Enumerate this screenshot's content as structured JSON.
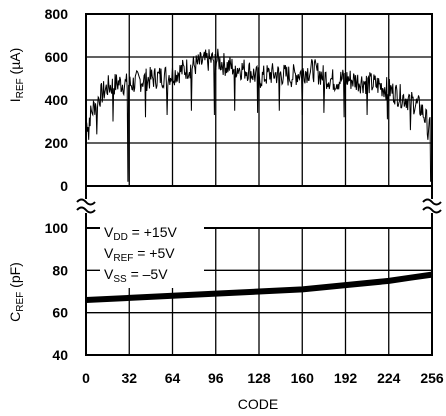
{
  "chart_data": {
    "type": "line",
    "xlabel": "CODE",
    "x_ticks": [
      "0",
      "32",
      "64",
      "96",
      "128",
      "160",
      "192",
      "224",
      "256"
    ],
    "xlim": [
      0,
      256
    ],
    "grid": true,
    "axis_break_between_panels": true,
    "panels": [
      {
        "name": "top",
        "ylabel_main": "I",
        "ylabel_sub": "REF",
        "ylabel_unit": " (µA)",
        "y_ticks": [
          "800",
          "600",
          "400",
          "200",
          "0"
        ],
        "ylim": [
          0,
          800
        ],
        "series": [
          {
            "style": "noisy-line",
            "x": [
              0,
              8,
              16,
              24,
              32,
              40,
              48,
              56,
              64,
              72,
              80,
              88,
              96,
              104,
              112,
              120,
              128,
              136,
              144,
              152,
              160,
              168,
              176,
              184,
              192,
              200,
              208,
              216,
              224,
              232,
              240,
              248,
              255
            ],
            "y": [
              280,
              400,
              460,
              480,
              470,
              490,
              500,
              510,
              520,
              540,
              560,
              580,
              590,
              560,
              550,
              540,
              500,
              520,
              520,
              510,
              530,
              540,
              510,
              490,
              500,
              490,
              480,
              470,
              450,
              420,
              400,
              360,
              260
            ],
            "spikes": [
              {
                "x": 2,
                "y": 215
              },
              {
                "x": 8,
                "y": 240
              },
              {
                "x": 20,
                "y": 300
              },
              {
                "x": 31,
                "y": 20
              },
              {
                "x": 44,
                "y": 320
              },
              {
                "x": 60,
                "y": 330
              },
              {
                "x": 78,
                "y": 350
              },
              {
                "x": 95,
                "y": 330
              },
              {
                "x": 110,
                "y": 350
              },
              {
                "x": 127,
                "y": 340
              },
              {
                "x": 143,
                "y": 350
              },
              {
                "x": 160,
                "y": 330
              },
              {
                "x": 176,
                "y": 340
              },
              {
                "x": 191,
                "y": 320
              },
              {
                "x": 208,
                "y": 330
              },
              {
                "x": 223,
                "y": 310
              },
              {
                "x": 240,
                "y": 260
              },
              {
                "x": 253,
                "y": 215
              },
              {
                "x": 255,
                "y": 20
              }
            ]
          }
        ]
      },
      {
        "name": "bottom",
        "ylabel_main": "C",
        "ylabel_sub": "REF",
        "ylabel_unit": " (pF)",
        "y_ticks": [
          "100",
          "80",
          "60",
          "40"
        ],
        "ylim": [
          40,
          100
        ],
        "series": [
          {
            "style": "thick-line",
            "x": [
              0,
              32,
              64,
              96,
              128,
              160,
              192,
              224,
              240,
              256
            ],
            "y": [
              66,
              67,
              68,
              69,
              70,
              71,
              73,
              75,
              76.5,
              78
            ]
          }
        ],
        "annotations": [
          {
            "main": "V",
            "sub": "DD",
            "rest": " = +15V"
          },
          {
            "main": "V",
            "sub": "REF",
            "rest": " = +5V"
          },
          {
            "main": "V",
            "sub": "SS",
            "rest": " = –5V"
          }
        ]
      }
    ]
  }
}
